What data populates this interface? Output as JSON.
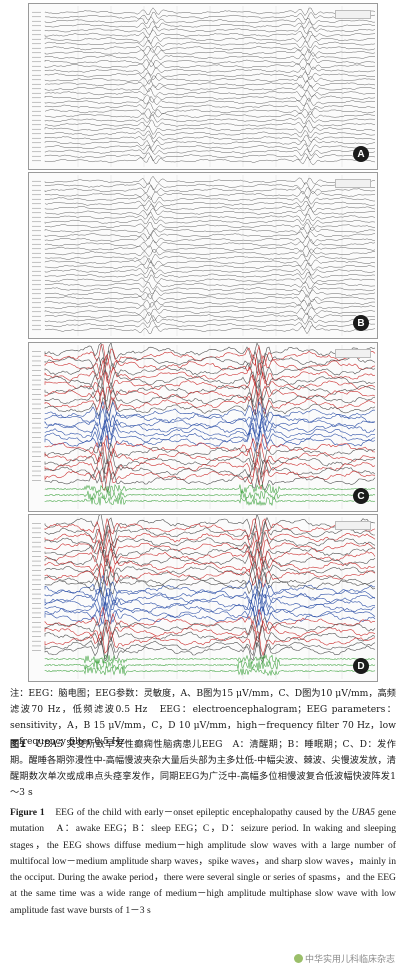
{
  "figure": {
    "panels": [
      {
        "id": "pA",
        "label": "A",
        "traces": 34,
        "blue": [],
        "red": []
      },
      {
        "id": "pB",
        "label": "B",
        "traces": 34,
        "blue": [],
        "red": []
      },
      {
        "id": "pC",
        "label": "C",
        "traces": 28,
        "blue": [
          13,
          14,
          15,
          16,
          17,
          18,
          19
        ],
        "red": [
          1,
          3,
          5,
          7,
          9,
          11,
          20,
          22,
          24,
          26
        ]
      },
      {
        "id": "pD",
        "label": "D",
        "traces": 28,
        "blue": [
          14,
          15,
          16,
          17,
          18,
          19,
          20
        ],
        "red": [
          1,
          3,
          5,
          7,
          9,
          11,
          21,
          23,
          25
        ]
      }
    ],
    "colors": {
      "trace": "#555555",
      "red": "#cc3333",
      "blue": "#3355aa",
      "emg": "#4aa84a"
    }
  },
  "caption": {
    "note": "注：EEG：脑电图；EEG参数：灵敏度，A、B图为15 μV/mm，C、D图为10 μV/mm，高频滤波70 Hz，低频滤波0.5 Hz　EEG：electroencephalogram；EEG parameters：sensitivity，A，B 15 μV/mm，C，D 10 μV/mm，high－frequency filter 70 Hz，low－frequency filter 0.5 Hz",
    "cn_label": "图1",
    "cn_gene": "UBA5",
    "cn_text": "突变所致早发性癫痫性脑病患儿EEG　A：清醒期；B：睡眠期；C、D：发作期。醒睡各期弥漫性中-高幅慢波夹杂大量后头部为主多灶低-中幅尖波、棘波、尖慢波发放，清醒期数次单次或成串点头痉挛发作，同期EEG为广泛中-高幅多位相慢波复合低波幅快波阵发1～3 s",
    "en_label": "Figure 1",
    "en_text_1": "EEG of the child with early－onset epileptic encephalopathy caused by the",
    "en_gene": "UBA5",
    "en_text_2": "gene mutation　A：awake EEG；B：sleep EEG；C，D：seizure period. In waking and sleeping stages，the EEG shows diffuse medium－high amplitude slow waves with a large number of multifocal low－medium amplitude sharp waves，spike waves，and sharp slow waves，mainly in the occiput. During the awake period，there were several single or series of spasms，and the EEG at the same time was a wide range of medium－high amplitude multiphase slow wave with low amplitude fast wave bursts of 1－3 s"
  },
  "watermark": "中华实用儿科临床杂志"
}
